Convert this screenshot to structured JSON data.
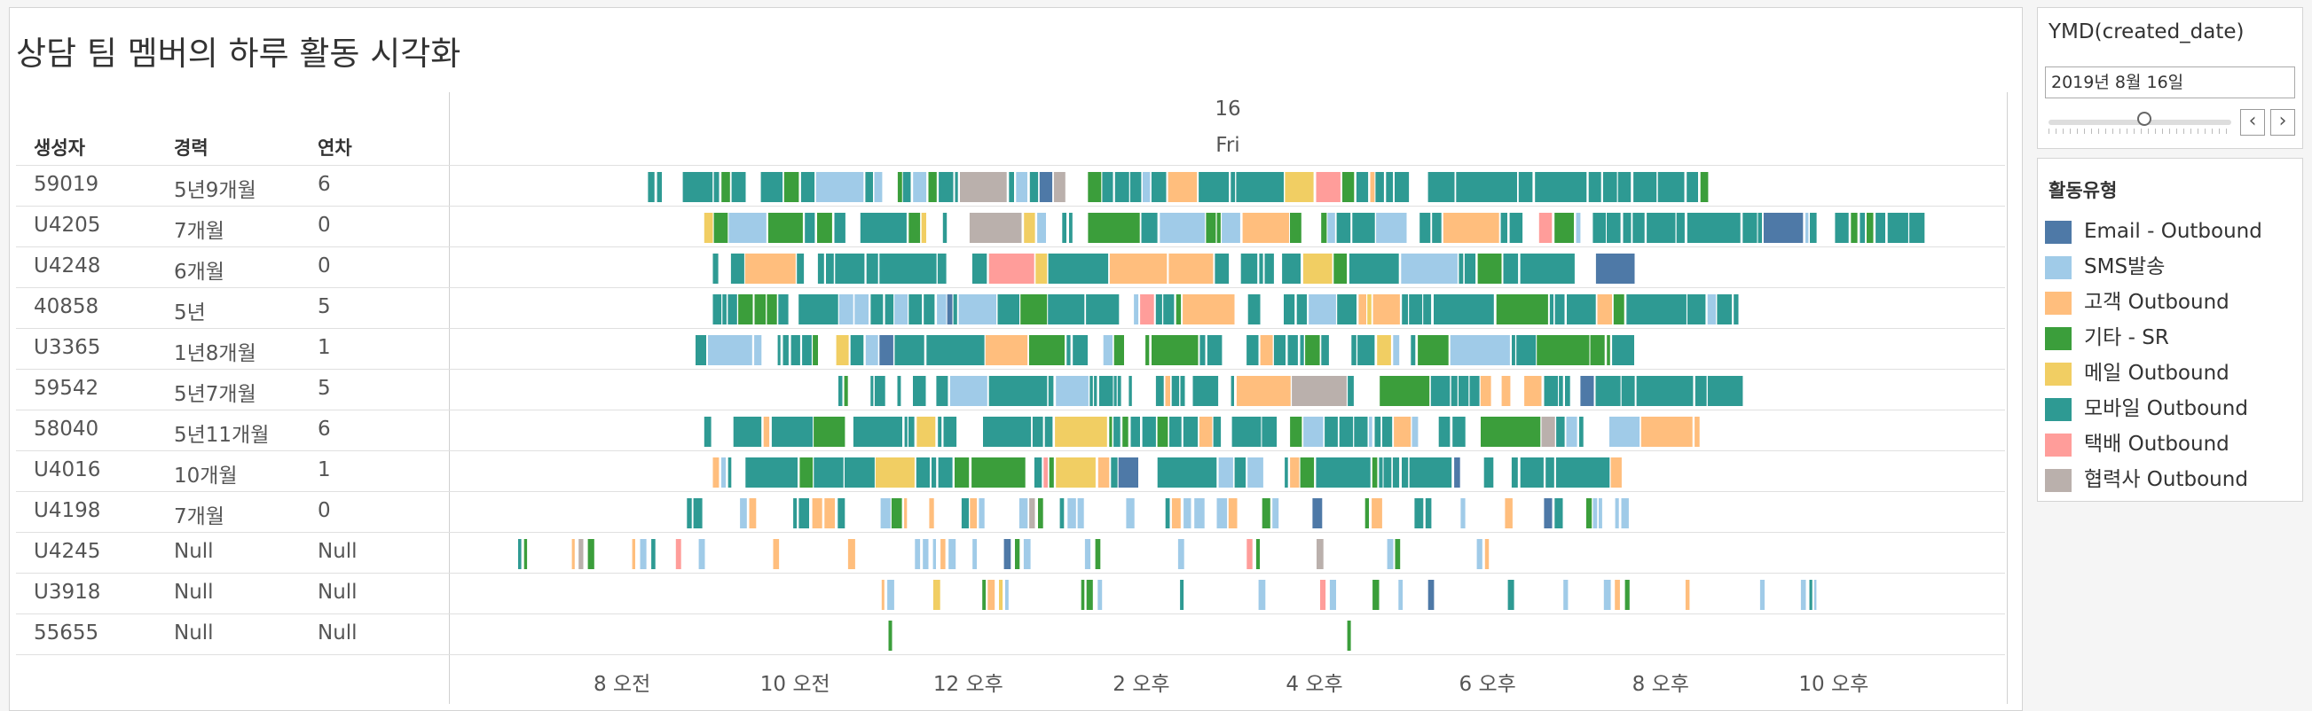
{
  "title": "상담 팀 멤버의 하루 활동 시각화",
  "columns": {
    "creator": "생성자",
    "career": "경력",
    "years": "연차"
  },
  "date_header": {
    "day": "16",
    "weekday": "Fri"
  },
  "rows": [
    {
      "creator": "59019",
      "career": "5년9개월",
      "years": "6"
    },
    {
      "creator": "U4205",
      "career": "7개월",
      "years": "0"
    },
    {
      "creator": "U4248",
      "career": "6개월",
      "years": "0"
    },
    {
      "creator": "40858",
      "career": "5년",
      "years": "5"
    },
    {
      "creator": "U3365",
      "career": "1년8개월",
      "years": "1"
    },
    {
      "creator": "59542",
      "career": "5년7개월",
      "years": "5"
    },
    {
      "creator": "58040",
      "career": "5년11개월",
      "years": "6"
    },
    {
      "creator": "U4016",
      "career": "10개월",
      "years": "1"
    },
    {
      "creator": "U4198",
      "career": "7개월",
      "years": "0"
    },
    {
      "creator": "U4245",
      "career": "Null",
      "years": "Null"
    },
    {
      "creator": "U3918",
      "career": "Null",
      "years": "Null"
    },
    {
      "creator": "55655",
      "career": "Null",
      "years": "Null"
    }
  ],
  "filter": {
    "title": "YMD(created_date)",
    "value": "2019년 8월 16일",
    "prev_label": "‹",
    "next_label": "›"
  },
  "legend": {
    "title": "활동유형",
    "items": [
      {
        "label": "Email - Outbound",
        "color": "#4e79a7"
      },
      {
        "label": "SMS발송",
        "color": "#a0cbe8"
      },
      {
        "label": "고객 Outbound",
        "color": "#ffbe7d"
      },
      {
        "label": "기타 - SR",
        "color": "#3b9e3b"
      },
      {
        "label": "메일 Outbound",
        "color": "#f1ce63"
      },
      {
        "label": "모바일 Outbound",
        "color": "#2e9a93"
      },
      {
        "label": "택배 Outbound",
        "color": "#ff9d9a"
      },
      {
        "label": "협력사 Outbound",
        "color": "#bab0ac"
      }
    ]
  },
  "chart_data": {
    "type": "gantt",
    "x_axis": {
      "unit": "hour of day",
      "range": [
        6.0,
        24.0
      ],
      "ticks": [
        {
          "value": 8,
          "label": "8 오전"
        },
        {
          "value": 10,
          "label": "10 오전"
        },
        {
          "value": 12,
          "label": "12 오후"
        },
        {
          "value": 14,
          "label": "2 오후"
        },
        {
          "value": 16,
          "label": "4 오후"
        },
        {
          "value": 18,
          "label": "6 오후"
        },
        {
          "value": 20,
          "label": "8 오후"
        },
        {
          "value": 22,
          "label": "10 오후"
        }
      ]
    },
    "categories": [
      "59019",
      "U4205",
      "U4248",
      "40858",
      "U3365",
      "59542",
      "58040",
      "U4016",
      "U4198",
      "U4245",
      "U3918",
      "55655"
    ],
    "activity_spans": [
      {
        "row": "59019",
        "start": 8.3,
        "end": 20.55,
        "pattern": "dense"
      },
      {
        "row": "U4205",
        "start": 8.95,
        "end": 23.05,
        "pattern": "dense"
      },
      {
        "row": "U4248",
        "start": 9.05,
        "end": 19.7,
        "pattern": "dense"
      },
      {
        "row": "40858",
        "start": 9.05,
        "end": 20.9,
        "pattern": "dense"
      },
      {
        "row": "U3365",
        "start": 8.85,
        "end": 19.7,
        "pattern": "dense"
      },
      {
        "row": "59542",
        "start": 10.5,
        "end": 20.95,
        "pattern": "dense"
      },
      {
        "row": "58040",
        "start": 8.95,
        "end": 20.45,
        "pattern": "dense"
      },
      {
        "row": "U4016",
        "start": 9.05,
        "end": 19.55,
        "pattern": "dense"
      },
      {
        "row": "U4198",
        "start": 8.75,
        "end": 19.8,
        "pattern": "medium"
      },
      {
        "row": "U4245",
        "start": 6.8,
        "end": 18.15,
        "pattern": "sparse"
      },
      {
        "row": "U3918",
        "start": 11.0,
        "end": 21.8,
        "pattern": "sparse"
      },
      {
        "row": "55655",
        "start": 11.1,
        "end": 16.4,
        "pattern": "points",
        "points": [
          11.1,
          16.4
        ]
      }
    ]
  }
}
